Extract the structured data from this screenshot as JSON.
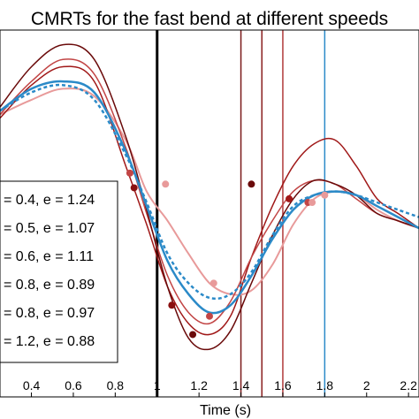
{
  "chart_data": {
    "type": "line",
    "title": "CMRTs for the fast bend at different speeds",
    "xlabel": "Time (s)",
    "ylabel": "",
    "xlim": [
      0.25,
      2.25
    ],
    "ylim": [
      0,
      10
    ],
    "xticks": [
      "0.4",
      "0.6",
      "0.8",
      "1",
      "1.2",
      "1.4",
      "1.6",
      "1.8",
      "2",
      "2.2"
    ],
    "tick_values": [
      0.4,
      0.6,
      0.8,
      1.0,
      1.2,
      1.4,
      1.6,
      1.8,
      2.0,
      2.2
    ],
    "grid": false,
    "legend_position": "left",
    "series": [
      {
        "name": "= 0.4, e = 1.24",
        "color": "#e89a9a",
        "width": 2,
        "x": [
          0.25,
          0.4,
          0.55,
          0.7,
          0.85,
          0.95,
          1.05,
          1.15,
          1.25,
          1.35,
          1.45,
          1.55,
          1.65,
          1.75,
          1.85,
          1.95,
          2.05,
          2.15,
          2.25
        ],
        "y": [
          7.7,
          8.1,
          8.4,
          8.2,
          7.0,
          5.6,
          4.8,
          3.9,
          3.1,
          2.8,
          2.9,
          3.6,
          4.7,
          5.4,
          5.6,
          5.5,
          5.1,
          4.8,
          4.6
        ]
      },
      {
        "name": "= 0.5, e = 1.07",
        "color": "#a01818",
        "width": 1.5,
        "x": [
          0.25,
          0.4,
          0.55,
          0.7,
          0.85,
          0.95,
          1.05,
          1.15,
          1.25,
          1.35,
          1.45,
          1.55,
          1.65,
          1.75,
          1.85,
          1.95,
          2.05,
          2.15,
          2.25
        ],
        "y": [
          7.6,
          8.5,
          9.0,
          8.6,
          6.3,
          4.7,
          3.0,
          2.0,
          1.7,
          2.2,
          3.8,
          5.2,
          6.3,
          6.9,
          7.0,
          6.3,
          5.4,
          5.0,
          4.6
        ]
      },
      {
        "name": "= 0.6, e = 1.11",
        "color": "#c24545",
        "width": 1.5,
        "x": [
          0.25,
          0.4,
          0.55,
          0.7,
          0.85,
          0.95,
          1.05,
          1.15,
          1.25,
          1.35,
          1.45,
          1.55,
          1.65,
          1.75,
          1.85,
          1.95,
          2.05,
          2.15,
          2.25
        ],
        "y": [
          7.7,
          8.6,
          9.2,
          8.8,
          6.8,
          5.0,
          3.3,
          2.3,
          2.0,
          2.6,
          3.8,
          4.8,
          5.6,
          5.9,
          5.8,
          5.4,
          5.0,
          4.8,
          4.6
        ]
      },
      {
        "name": "= 0.8, e = 0.89",
        "color": "#6a0a0a",
        "width": 1.5,
        "x": [
          0.25,
          0.4,
          0.55,
          0.7,
          0.85,
          0.95,
          1.05,
          1.15,
          1.25,
          1.35,
          1.45,
          1.55,
          1.65,
          1.75,
          1.85,
          1.95,
          2.05,
          2.15,
          2.25
        ],
        "y": [
          7.9,
          9.0,
          9.6,
          9.2,
          7.1,
          5.1,
          3.0,
          1.6,
          1.3,
          1.8,
          3.1,
          4.4,
          5.4,
          5.9,
          5.8,
          5.5,
          5.0,
          4.8,
          4.6
        ]
      },
      {
        "name": "= 0.8, e = 0.97",
        "color": "#2b8ac8",
        "width": 2.5,
        "x": [
          0.25,
          0.4,
          0.55,
          0.7,
          0.85,
          0.95,
          1.05,
          1.15,
          1.25,
          1.35,
          1.45,
          1.55,
          1.65,
          1.75,
          1.85,
          1.95,
          2.05,
          2.15,
          2.25
        ],
        "y": [
          7.8,
          8.4,
          8.6,
          8.3,
          6.7,
          5.2,
          3.7,
          2.8,
          2.3,
          2.5,
          3.3,
          4.3,
          5.1,
          5.5,
          5.6,
          5.5,
          5.2,
          4.9,
          4.6
        ]
      },
      {
        "name": "= 1.2, e = 0.88",
        "color": "#2b8ac8",
        "width": 2.5,
        "dashed": true,
        "x": [
          0.25,
          0.4,
          0.55,
          0.7,
          0.85,
          0.95,
          1.05,
          1.15,
          1.25,
          1.35,
          1.45,
          1.55,
          1.65,
          1.75,
          1.85,
          1.95,
          2.05,
          2.15,
          2.25
        ],
        "y": [
          7.8,
          8.3,
          8.5,
          8.1,
          6.6,
          5.3,
          3.9,
          3.1,
          2.7,
          2.8,
          3.4,
          4.4,
          5.2,
          5.5,
          5.6,
          5.5,
          5.3,
          5.1,
          4.9
        ]
      }
    ],
    "markers": [
      {
        "x": 0.87,
        "y": 6.1,
        "color": "#c24545"
      },
      {
        "x": 0.89,
        "y": 5.7,
        "color": "#8a1010"
      },
      {
        "x": 1.04,
        "y": 5.8,
        "color": "#e89a9a"
      },
      {
        "x": 1.07,
        "y": 2.5,
        "color": "#8a1010"
      },
      {
        "x": 1.17,
        "y": 1.7,
        "color": "#6a0a0a"
      },
      {
        "x": 1.25,
        "y": 2.2,
        "color": "#c24545"
      },
      {
        "x": 1.27,
        "y": 3.1,
        "color": "#e89a9a"
      },
      {
        "x": 1.45,
        "y": 5.8,
        "color": "#6a0a0a"
      },
      {
        "x": 1.63,
        "y": 5.4,
        "color": "#a01818"
      },
      {
        "x": 1.72,
        "y": 5.3,
        "color": "#c24545"
      },
      {
        "x": 1.74,
        "y": 5.3,
        "color": "#e89a9a"
      },
      {
        "x": 1.8,
        "y": 5.5,
        "color": "#e89a9a"
      }
    ],
    "vlines": [
      {
        "x": 1.0,
        "color": "#000000",
        "width": 3
      },
      {
        "x": 1.4,
        "color": "#7a1a1a",
        "width": 1.5
      },
      {
        "x": 1.5,
        "color": "#8a2020",
        "width": 1.5
      },
      {
        "x": 1.6,
        "color": "#b03a3a",
        "width": 1.5
      },
      {
        "x": 1.8,
        "color": "#2b8ac8",
        "width": 1.5
      }
    ]
  }
}
